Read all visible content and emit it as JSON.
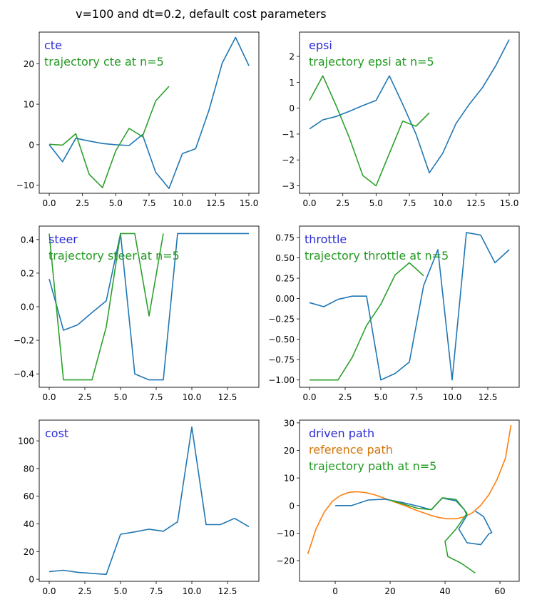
{
  "figure": {
    "suptitle": "v=100 and dt=0.2, default cost parameters"
  },
  "colors": {
    "blue": "#1f77b4",
    "orange": "#ff7f0e",
    "green": "#2ca02c",
    "label_blue": "#2b2bd6",
    "label_orange": "#d4760a",
    "label_green": "#229922"
  },
  "chart_data": [
    {
      "id": "cte",
      "type": "line",
      "xlim": [
        -0.75,
        15.75
      ],
      "ylim": [
        -12,
        27.8
      ],
      "xticks": [
        0,
        2.5,
        5,
        7.5,
        10,
        12.5,
        15
      ],
      "xticklabels": [
        "0.0",
        "2.5",
        "5.0",
        "7.5",
        "10.0",
        "12.5",
        "15.0"
      ],
      "yticks": [
        -10,
        0,
        10,
        20
      ],
      "yticklabels": [
        "−10",
        "0",
        "10",
        "20"
      ],
      "labels": [
        "cte",
        "trajectory cte at n=5"
      ],
      "label_colors": [
        "label_blue",
        "label_green"
      ],
      "series": [
        {
          "color": "blue",
          "x": [
            0,
            1,
            2,
            3,
            4,
            5,
            6,
            7,
            8,
            9,
            10,
            11,
            12,
            13,
            14,
            15
          ],
          "y": [
            0,
            -4.2,
            1.6,
            0.9,
            0.3,
            0,
            -0.2,
            2.5,
            -6.8,
            -10.8,
            -2.2,
            -1.0,
            8.5,
            20.2,
            26.5,
            19.5
          ]
        },
        {
          "color": "green",
          "x": [
            0,
            1,
            2,
            3,
            4,
            5,
            6,
            7,
            8,
            9
          ],
          "y": [
            0.1,
            -0.1,
            2.7,
            -7.3,
            -10.6,
            -1.5,
            4.0,
            2.0,
            10.8,
            14.4
          ]
        }
      ]
    },
    {
      "id": "epsi",
      "type": "line",
      "xlim": [
        -0.75,
        15.75
      ],
      "ylim": [
        -3.29,
        2.94
      ],
      "xticks": [
        0,
        2.5,
        5,
        7.5,
        10,
        12.5,
        15
      ],
      "xticklabels": [
        "0.0",
        "2.5",
        "5.0",
        "7.5",
        "10.0",
        "12.5",
        "15.0"
      ],
      "yticks": [
        -3,
        -2,
        -1,
        0,
        1,
        2
      ],
      "yticklabels": [
        "−3",
        "−2",
        "−1",
        "0",
        "1",
        "2"
      ],
      "labels": [
        "epsi",
        "trajectory epsi at n=5"
      ],
      "label_colors": [
        "label_blue",
        "label_green"
      ],
      "series": [
        {
          "color": "blue",
          "x": [
            0,
            1,
            2,
            3,
            4,
            5,
            6,
            7,
            8,
            9,
            10,
            11,
            12,
            13,
            14,
            15
          ],
          "y": [
            -0.8,
            -0.45,
            -0.32,
            -0.12,
            0.1,
            0.3,
            1.25,
            0.15,
            -1.0,
            -2.5,
            -1.75,
            -0.6,
            0.15,
            0.8,
            1.65,
            2.65
          ]
        },
        {
          "color": "green",
          "x": [
            0,
            1,
            2,
            3,
            4,
            5,
            6,
            7,
            8,
            9
          ],
          "y": [
            0.3,
            1.25,
            0.1,
            -1.15,
            -2.6,
            -3.0,
            -1.75,
            -0.5,
            -0.7,
            -0.18
          ]
        }
      ]
    },
    {
      "id": "steer",
      "type": "line",
      "xlim": [
        -0.7,
        14.7
      ],
      "ylim": [
        -0.48,
        0.48
      ],
      "xticks": [
        0,
        2.5,
        5,
        7.5,
        10,
        12.5
      ],
      "xticklabels": [
        "0.0",
        "2.5",
        "5.0",
        "7.5",
        "10.0",
        "12.5"
      ],
      "yticks": [
        -0.4,
        -0.2,
        0,
        0.2,
        0.4
      ],
      "yticklabels": [
        "−0.4",
        "−0.2",
        "0.0",
        "0.2",
        "0.4"
      ],
      "labels": [
        "steer",
        "trajectory steer at n=5"
      ],
      "label_colors": [
        "label_blue",
        "label_green"
      ],
      "series": [
        {
          "color": "blue",
          "x": [
            0,
            1,
            2,
            3,
            4,
            5,
            6,
            7,
            8,
            9,
            10,
            11,
            12,
            13,
            14
          ],
          "y": [
            0.165,
            -0.14,
            -0.108,
            -0.035,
            0.035,
            0.436,
            -0.4,
            -0.436,
            -0.436,
            0.436,
            0.436,
            0.436,
            0.436,
            0.436,
            0.436
          ]
        },
        {
          "color": "green",
          "x": [
            0,
            1,
            2,
            3,
            4,
            5,
            6,
            7,
            8
          ],
          "y": [
            0.436,
            -0.436,
            -0.436,
            -0.436,
            -0.12,
            0.436,
            0.436,
            -0.055,
            0.436
          ]
        }
      ]
    },
    {
      "id": "throttle",
      "type": "line",
      "xlim": [
        -0.7,
        14.7
      ],
      "ylim": [
        -1.09,
        0.89
      ],
      "xticks": [
        0,
        2.5,
        5,
        7.5,
        10,
        12.5
      ],
      "xticklabels": [
        "0.0",
        "2.5",
        "5.0",
        "7.5",
        "10.0",
        "12.5"
      ],
      "yticks": [
        -1,
        -0.75,
        -0.5,
        -0.25,
        0,
        0.25,
        0.5,
        0.75
      ],
      "yticklabels": [
        "−1.00",
        "−0.75",
        "−0.50",
        "−0.25",
        "0.00",
        "0.25",
        "0.50",
        "0.75"
      ],
      "labels": [
        "throttle",
        "trajectory throttle at n=5"
      ],
      "label_colors": [
        "label_blue",
        "label_green"
      ],
      "series": [
        {
          "color": "blue",
          "x": [
            0,
            1,
            2,
            3,
            4,
            5,
            6,
            7,
            8,
            9,
            10,
            11,
            12,
            13,
            14
          ],
          "y": [
            -0.05,
            -0.1,
            -0.01,
            0.03,
            0.03,
            -1.0,
            -0.92,
            -0.78,
            0.16,
            0.6,
            -1.0,
            0.81,
            0.78,
            0.44,
            0.6
          ]
        },
        {
          "color": "green",
          "x": [
            0,
            1,
            2,
            3,
            4,
            5,
            6,
            7,
            8
          ],
          "y": [
            -1.0,
            -1.0,
            -1.0,
            -0.72,
            -0.33,
            -0.07,
            0.29,
            0.44,
            0.28
          ]
        }
      ]
    },
    {
      "id": "cost",
      "type": "line",
      "xlim": [
        -0.7,
        14.7
      ],
      "ylim": [
        -1.5,
        115
      ],
      "xticks": [
        0,
        2.5,
        5,
        7.5,
        10,
        12.5
      ],
      "xticklabels": [
        "0.0",
        "2.5",
        "5.0",
        "7.5",
        "10.0",
        "12.5"
      ],
      "yticks": [
        0,
        20,
        40,
        60,
        80,
        100
      ],
      "yticklabels": [
        "0",
        "20",
        "40",
        "60",
        "80",
        "100"
      ],
      "labels": [
        "cost"
      ],
      "label_colors": [
        "label_blue"
      ],
      "series": [
        {
          "color": "blue",
          "x": [
            0,
            1,
            2,
            3,
            4,
            5,
            6,
            7,
            8,
            9,
            10,
            11,
            12,
            13,
            14
          ],
          "y": [
            5.5,
            6.5,
            5,
            4.2,
            3.5,
            32.5,
            34.2,
            36.2,
            34.7,
            41.5,
            110,
            39.5,
            39.5,
            44,
            38
          ]
        }
      ]
    },
    {
      "id": "path",
      "type": "line",
      "xlim": [
        -13,
        67
      ],
      "ylim": [
        -27.5,
        31
      ],
      "xticks": [
        0,
        20,
        40,
        60
      ],
      "xticklabels": [
        "0",
        "20",
        "40",
        "60"
      ],
      "yticks": [
        -20,
        -10,
        0,
        10,
        20,
        30
      ],
      "yticklabels": [
        "−20",
        "−10",
        "0",
        "10",
        "20",
        "30"
      ],
      "labels": [
        "driven path",
        "reference path",
        "trajectory path at n=5"
      ],
      "label_colors": [
        "label_blue",
        "label_orange",
        "label_green"
      ],
      "series": [
        {
          "color": "orange",
          "x": [
            -10,
            -7,
            -4,
            -1,
            2,
            5,
            8,
            11,
            14,
            17,
            20,
            23,
            26,
            29,
            32,
            35,
            38,
            41,
            44,
            47,
            50,
            53,
            56,
            59,
            62,
            64
          ],
          "y": [
            -17.6,
            -8.5,
            -2.4,
            1.6,
            3.7,
            4.8,
            5.0,
            4.7,
            4.0,
            3.0,
            1.9,
            0.8,
            -0.3,
            -1.5,
            -2.6,
            -3.6,
            -4.4,
            -4.8,
            -4.8,
            -4.1,
            -2.6,
            0.1,
            4.0,
            9.6,
            17.2,
            29.2
          ]
        },
        {
          "color": "blue",
          "x": [
            0,
            6,
            12,
            18,
            24,
            30,
            35,
            39,
            44,
            47,
            48,
            45,
            48,
            53,
            56,
            57,
            54,
            51
          ],
          "y": [
            0,
            0,
            2,
            2.3,
            1.2,
            -0.2,
            -1.5,
            2.7,
            1.7,
            -1.5,
            -3.5,
            -8.5,
            -13.5,
            -14.2,
            -10.2,
            -9.8,
            -4.0,
            -2.0
          ]
        },
        {
          "color": "green",
          "x": [
            20,
            25,
            30,
            35,
            39,
            44,
            47,
            48,
            44,
            40,
            41,
            46,
            51
          ],
          "y": [
            2.0,
            0.5,
            -1,
            -1.5,
            2.8,
            2.2,
            -1.5,
            -2.8,
            -8.5,
            -13,
            -18.5,
            -21,
            -24.5
          ]
        }
      ]
    }
  ]
}
